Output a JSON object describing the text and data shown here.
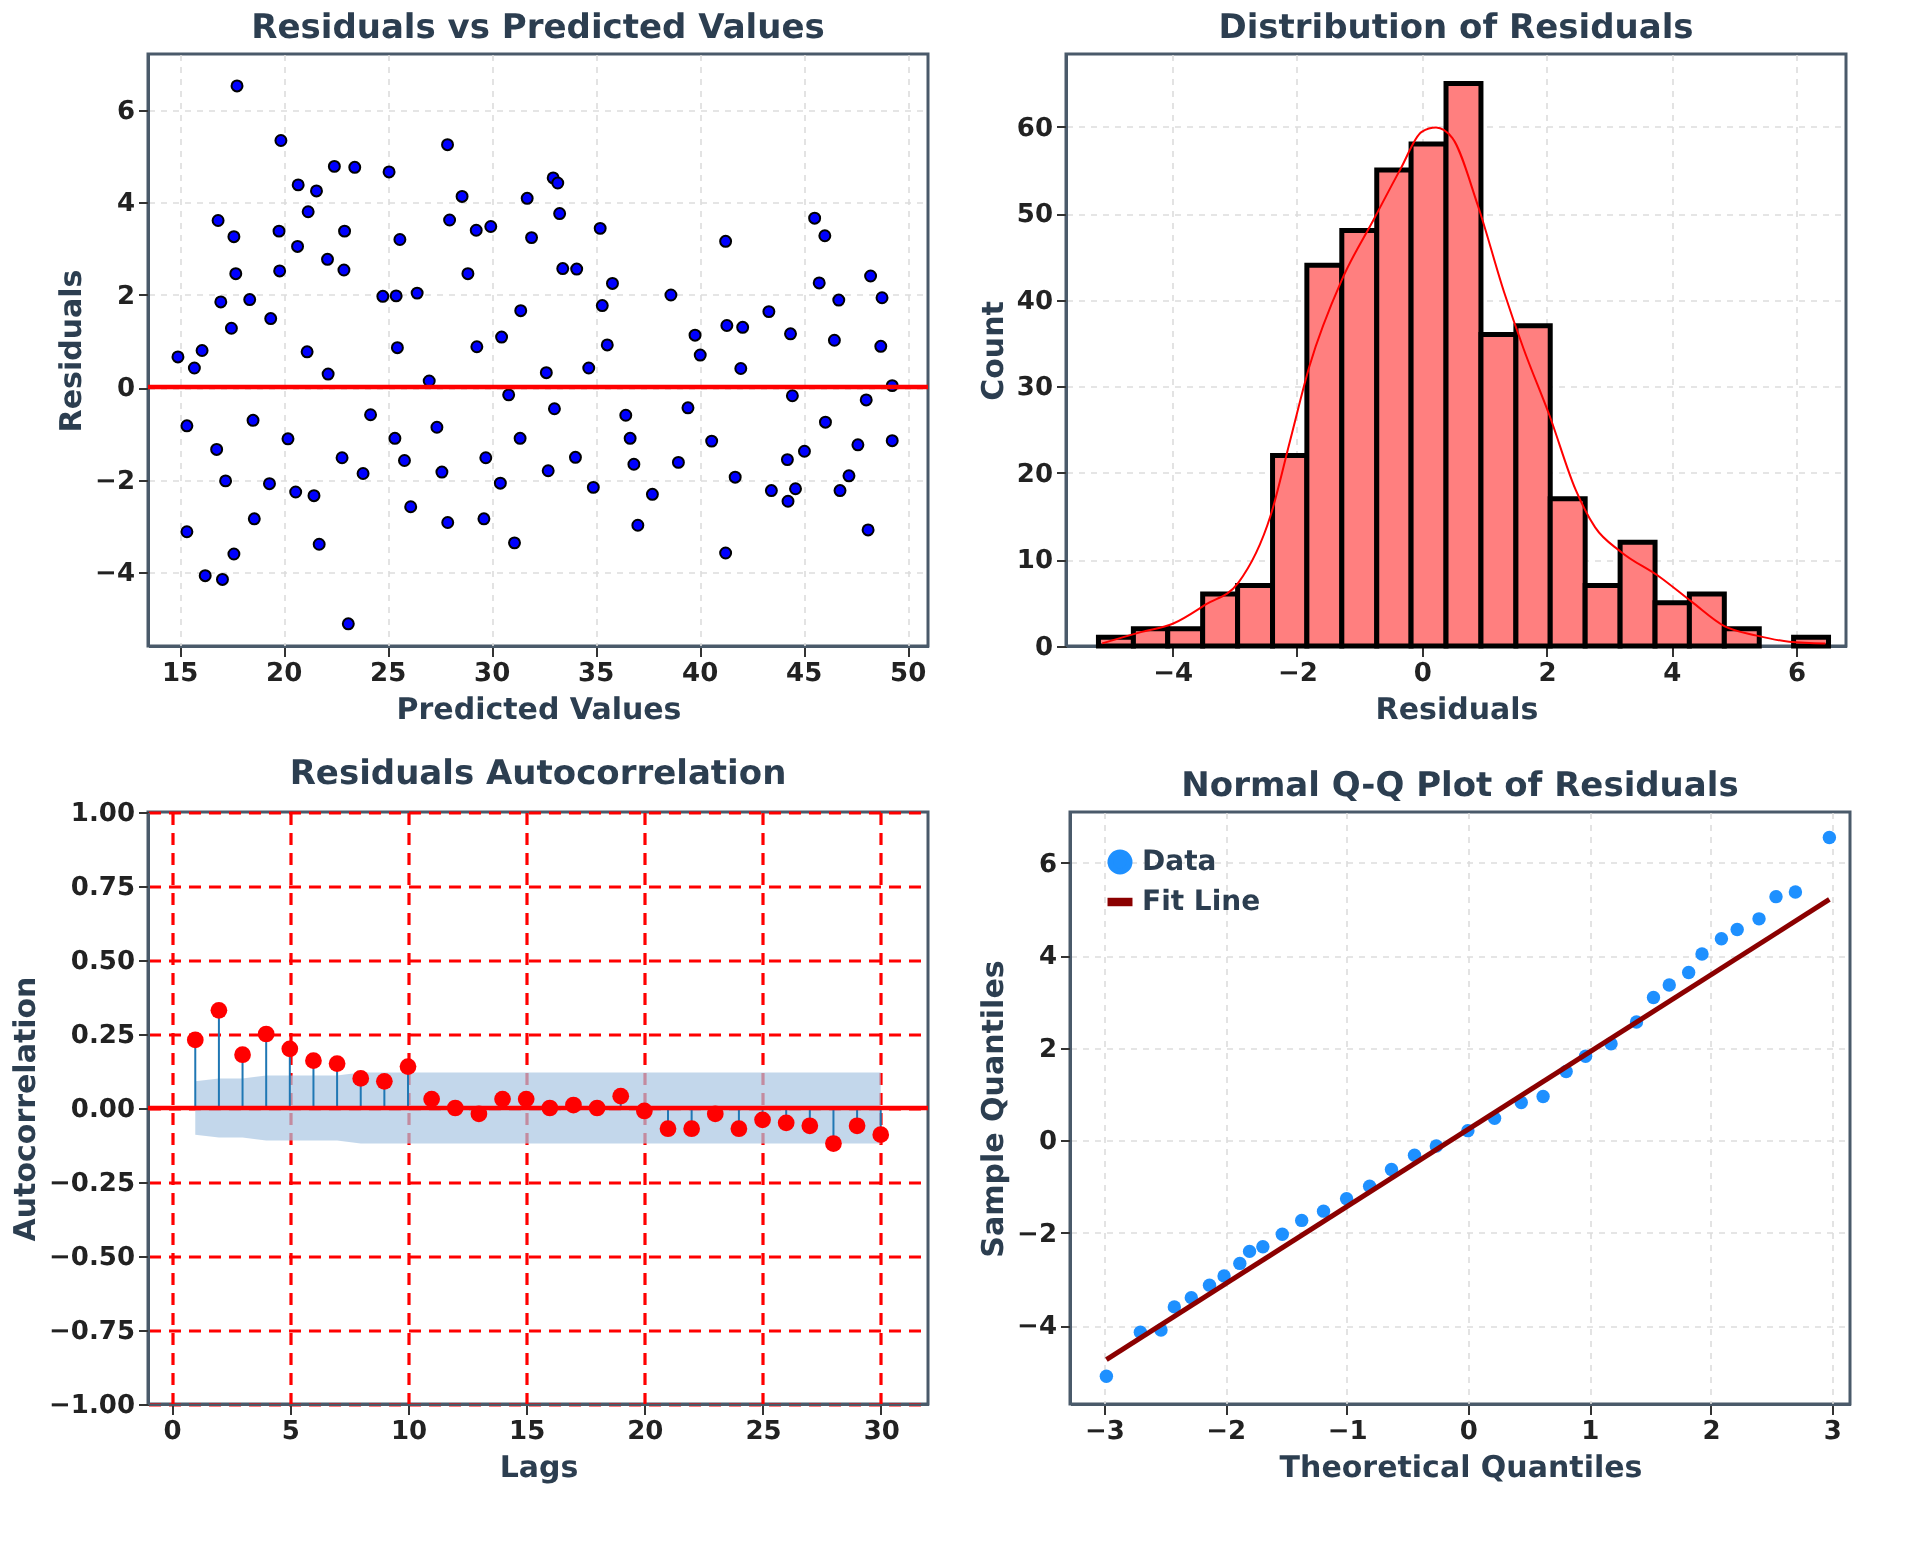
{
  "chart_data": [
    {
      "type": "scatter",
      "title": "Residuals vs Predicted Values",
      "xlabel": "Predicted Values",
      "ylabel": "Residuals",
      "marker": "circle",
      "grid": true,
      "color": "#0000ff",
      "xlim": [
        13.5,
        51
      ],
      "ylim": [
        -5.6,
        7.2
      ],
      "xticks": [
        15,
        20,
        25,
        30,
        35,
        40,
        45,
        50
      ],
      "yticks": [
        {
          "value": -4,
          "label": "−4"
        },
        {
          "value": -2,
          "label": "−2"
        },
        0,
        2,
        4,
        6
      ],
      "ref_lines": [
        {
          "axis": "y",
          "value": 0,
          "color": "#ff0000"
        }
      ],
      "x": [
        17.78,
        19.89,
        27.9,
        22.46,
        23.44,
        25.09,
        20.72,
        21.6,
        32.98,
        33.2,
        28.6,
        31.73,
        21.2,
        33.29,
        16.87,
        28.0,
        45.55,
        46.04,
        17.63,
        19.8,
        22.95,
        25.61,
        29.28,
        29.98,
        31.94,
        35.24,
        41.27,
        20.69,
        22.13,
        17.72,
        19.83,
        22.92,
        33.44,
        34.11,
        28.88,
        35.83,
        48.24,
        45.77,
        17.0,
        18.39,
        24.79,
        25.43,
        26.44,
        35.34,
        38.64,
        48.79,
        46.71,
        17.51,
        19.4,
        31.42,
        41.33,
        42.09,
        43.35,
        44.39,
        39.8,
        30.5,
        14.94,
        16.1,
        21.15,
        25.49,
        29.31,
        35.58,
        40.05,
        46.5,
        48.73,
        15.73,
        22.16,
        27.02,
        32.65,
        34.69,
        42.0,
        49.28,
        15.37,
        18.55,
        24.2,
        27.39,
        30.84,
        33.04,
        36.47,
        39.46,
        44.48,
        46.07,
        48.03,
        16.8,
        20.23,
        25.37,
        31.39,
        36.68,
        40.6,
        49.28,
        47.63,
        17.23,
        22.83,
        25.83,
        29.74,
        34.05,
        36.86,
        39.0,
        45.06,
        44.24,
        19.34,
        23.84,
        27.63,
        30.44,
        32.74,
        41.73,
        47.2,
        20.6,
        21.48,
        34.91,
        37.75,
        43.47,
        44.63,
        46.77,
        26.13,
        44.27,
        18.61,
        27.91,
        29.65,
        37.05,
        48.12,
        15.37,
        21.73,
        31.12,
        17.63,
        41.27,
        16.25,
        17.08,
        23.13
      ],
      "values": [
        6.51,
        5.33,
        5.24,
        4.77,
        4.75,
        4.65,
        4.37,
        4.24,
        4.52,
        4.41,
        4.12,
        4.08,
        3.79,
        3.75,
        3.6,
        3.61,
        3.65,
        3.27,
        3.25,
        3.37,
        3.37,
        3.19,
        3.39,
        3.47,
        3.23,
        3.43,
        3.15,
        3.04,
        2.76,
        2.45,
        2.51,
        2.53,
        2.56,
        2.55,
        2.45,
        2.24,
        2.4,
        2.25,
        1.84,
        1.89,
        1.96,
        1.97,
        2.03,
        1.76,
        1.99,
        1.93,
        1.88,
        1.27,
        1.48,
        1.65,
        1.33,
        1.29,
        1.63,
        1.15,
        1.12,
        1.08,
        0.65,
        0.79,
        0.76,
        0.85,
        0.87,
        0.91,
        0.69,
        1.01,
        0.88,
        0.41,
        0.28,
        0.13,
        0.31,
        0.41,
        0.4,
        0.03,
        -0.84,
        -0.72,
        -0.6,
        -0.87,
        -0.17,
        -0.47,
        -0.61,
        -0.45,
        -0.19,
        -0.76,
        -0.28,
        -1.35,
        -1.12,
        -1.11,
        -1.11,
        -1.11,
        -1.17,
        -1.16,
        -1.25,
        -2.03,
        -1.53,
        -1.59,
        -1.53,
        -1.52,
        -1.67,
        -1.63,
        -1.39,
        -1.57,
        -2.09,
        -1.87,
        -1.84,
        -2.08,
        -1.81,
        -1.95,
        -1.92,
        -2.27,
        -2.35,
        -2.17,
        -2.32,
        -2.24,
        -2.2,
        -2.24,
        -2.59,
        -2.47,
        -2.85,
        -2.93,
        -2.85,
        -2.99,
        -3.09,
        -3.13,
        -3.4,
        -3.37,
        -3.61,
        -3.59,
        -4.08,
        -4.16,
        -5.12
      ]
    },
    {
      "type": "histogram",
      "title": "Distribution of Residuals",
      "xlabel": "Residuals",
      "ylabel": "Count",
      "grid": true,
      "xlim": [
        -5.7,
        6.8
      ],
      "ylim": [
        0,
        68.4
      ],
      "xticks": [
        {
          "value": -4,
          "label": "−4"
        },
        {
          "value": -2,
          "label": "−2"
        },
        0,
        2,
        4,
        6
      ],
      "yticks": [
        0,
        10,
        20,
        30,
        40,
        50,
        60
      ],
      "series": [
        {
          "type": "histogram",
          "color": "#ff7f7f",
          "bins": [
            -5.18,
            -4.62,
            -4.07,
            -3.51,
            -2.95,
            -2.39,
            -1.84,
            -1.28,
            -0.72,
            -0.17,
            0.39,
            0.95,
            1.51,
            2.06,
            2.62,
            3.18,
            3.74,
            4.29,
            4.85,
            5.41,
            5.96,
            6.52
          ],
          "values": [
            1,
            2,
            2,
            6,
            7,
            22,
            44,
            48,
            55,
            58,
            65,
            36,
            37,
            17,
            7,
            12,
            5,
            6,
            2,
            0,
            1
          ]
        },
        {
          "type": "line",
          "color": "#ff0000",
          "x": [
            -5.12,
            -4.5,
            -3.98,
            -3.46,
            -2.94,
            -2.42,
            -2.11,
            -1.8,
            -1.28,
            -0.76,
            -0.34,
            0,
            0.23,
            0.49,
            0.9,
            1.32,
            1.63,
            2.05,
            2.47,
            2.78,
            3.19,
            3.81,
            4.33,
            4.85,
            5.37,
            5.89,
            6.47
          ],
          "values": [
            0.3,
            1.6,
            2.6,
            4.8,
            7.3,
            15.1,
            23.7,
            32.3,
            42.3,
            49.4,
            55.1,
            59.4,
            59.9,
            58.7,
            50.9,
            40.9,
            34.4,
            26.6,
            18.0,
            13.7,
            10.9,
            8.0,
            5.1,
            2.3,
            1.2,
            0.5,
            0.3
          ]
        }
      ]
    },
    {
      "type": "lollipop",
      "title": "Residuals Autocorrelation",
      "xlabel": "Lags",
      "ylabel": "Autocorrelation",
      "grid": true,
      "xlim": [
        -1,
        32
      ],
      "ylim": [
        -1,
        1
      ],
      "xticks": [
        0,
        5,
        10,
        15,
        20,
        25,
        30
      ],
      "yticks": [
        {
          "value": -1,
          "label": "−1.00"
        },
        {
          "value": -0.75,
          "label": "−0.75"
        },
        {
          "value": -0.5,
          "label": "−0.50"
        },
        {
          "value": -0.25,
          "label": "−0.25"
        },
        {
          "value": 0,
          "label": "0.00"
        },
        {
          "value": 0.25,
          "label": "0.25"
        },
        {
          "value": 0.5,
          "label": "0.50"
        },
        {
          "value": 0.75,
          "label": "0.75"
        },
        {
          "value": 1,
          "label": "1.00"
        }
      ],
      "ref_lines": [
        {
          "axis": "y",
          "value": 0,
          "color": "#ff0000"
        }
      ],
      "x": [
        1,
        2,
        3,
        4,
        5,
        6,
        7,
        8,
        9,
        10,
        11,
        12,
        13,
        14,
        15,
        16,
        17,
        18,
        19,
        20,
        21,
        22,
        23,
        24,
        25,
        26,
        27,
        28,
        29,
        30
      ],
      "series": [
        {
          "color": "#ff0000",
          "values": [
            0.23,
            0.33,
            0.18,
            0.25,
            0.2,
            0.16,
            0.15,
            0.1,
            0.09,
            0.14,
            0.03,
            0.0,
            -0.02,
            0.03,
            0.03,
            0.0,
            0.01,
            0.0,
            0.04,
            -0.01,
            -0.07,
            -0.07,
            -0.02,
            -0.07,
            -0.04,
            -0.05,
            -0.06,
            -0.12,
            -0.06,
            -0.09
          ],
          "lower": [
            -0.09,
            -0.1,
            -0.1,
            -0.11,
            -0.11,
            -0.11,
            -0.11,
            -0.12,
            -0.12,
            -0.12,
            -0.12,
            -0.12,
            -0.12,
            -0.12,
            -0.12,
            -0.12,
            -0.12,
            -0.12,
            -0.12,
            -0.12,
            -0.12,
            -0.12,
            -0.12,
            -0.12,
            -0.12,
            -0.12,
            -0.12,
            -0.12,
            -0.12,
            -0.12
          ],
          "upper": [
            0.09,
            0.1,
            0.1,
            0.11,
            0.11,
            0.11,
            0.11,
            0.12,
            0.12,
            0.12,
            0.12,
            0.12,
            0.12,
            0.12,
            0.12,
            0.12,
            0.12,
            0.12,
            0.12,
            0.12,
            0.12,
            0.12,
            0.12,
            0.12,
            0.12,
            0.12,
            0.12,
            0.12,
            0.12,
            0.12
          ]
        }
      ]
    },
    {
      "type": "scatter",
      "title": "Normal Q-Q Plot of Residuals",
      "xlabel": "Theoretical Quantiles",
      "ylabel": "Sample Quantiles",
      "grid": true,
      "legend": "top left",
      "xlim": [
        -3.28,
        3.15
      ],
      "ylim": [
        -5.7,
        7.1
      ],
      "xticks": [
        {
          "value": -3,
          "label": "−3"
        },
        {
          "value": -2,
          "label": "−2"
        },
        {
          "value": -1,
          "label": "−1"
        },
        0,
        1,
        2,
        3
      ],
      "yticks": [
        {
          "value": -4,
          "label": "−4"
        },
        {
          "value": -2,
          "label": "−2"
        },
        0,
        2,
        4,
        6
      ],
      "series": [
        {
          "name": "Data",
          "type": "scatter",
          "marker": "circle",
          "color": "#1e90ff",
          "x": [
            -2.98,
            -2.7,
            -2.53,
            -2.42,
            -2.28,
            -2.13,
            -2.01,
            -1.88,
            -1.8,
            -1.69,
            -1.53,
            -1.37,
            -1.19,
            -1.0,
            -0.81,
            -0.63,
            -0.44,
            -0.26,
            0,
            0.22,
            0.44,
            0.62,
            0.81,
            0.97,
            1.18,
            1.39,
            1.53,
            1.66,
            1.82,
            1.93,
            2.09,
            2.22,
            2.4,
            2.54,
            2.7,
            2.98
          ],
          "values": [
            -5.1,
            -4.15,
            -4.1,
            -3.6,
            -3.4,
            -3.13,
            -2.93,
            -2.66,
            -2.4,
            -2.3,
            -2.03,
            -1.73,
            -1.53,
            -1.26,
            -0.99,
            -0.63,
            -0.32,
            -0.12,
            0.21,
            0.48,
            0.82,
            0.95,
            1.49,
            1.82,
            2.09,
            2.56,
            3.09,
            3.36,
            3.63,
            4.03,
            4.36,
            4.56,
            4.79,
            5.27,
            5.37,
            6.55
          ]
        },
        {
          "name": "Fit Line",
          "type": "line",
          "marker": "none",
          "color": "#8b0000",
          "x": [
            -2.98,
            2.98
          ],
          "values": [
            -4.74,
            5.21
          ]
        }
      ]
    }
  ]
}
